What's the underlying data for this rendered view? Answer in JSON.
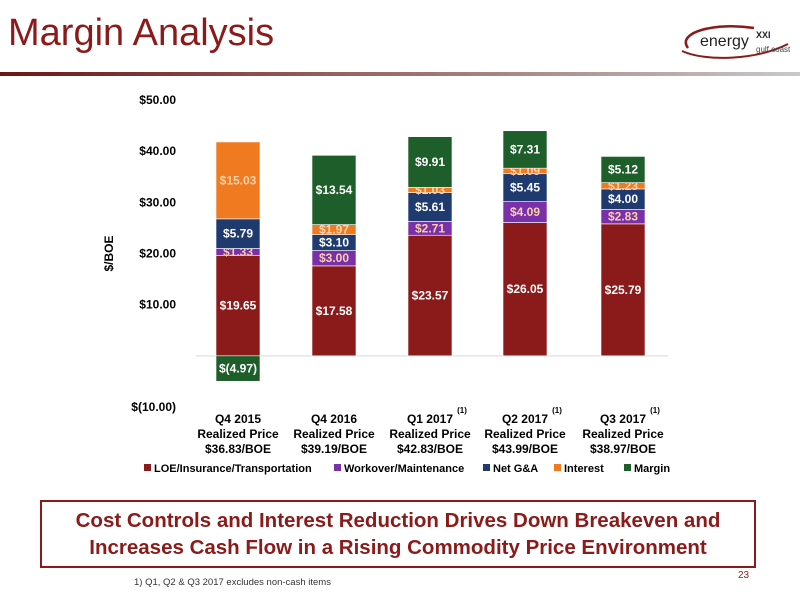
{
  "header": {
    "title": "Margin Analysis",
    "logo": {
      "brand": "energy",
      "brand_suffix": "XXI",
      "tagline": "gulf coast"
    }
  },
  "callout": {
    "line1": "Cost Controls and Interest Reduction Drives Down Breakeven and",
    "line2": "Increases Cash Flow in a Rising Commodity Price Environment"
  },
  "footnote": "1) Q1, Q2 & Q3 2017 excludes non-cash items",
  "page_number": "23",
  "chart_data": {
    "type": "bar",
    "stacked": true,
    "ylabel": "$/BOE",
    "ylim": [
      -10,
      50
    ],
    "yticks": [
      {
        "value": 50,
        "label": "$50.00"
      },
      {
        "value": 40,
        "label": "$40.00"
      },
      {
        "value": 30,
        "label": "$30.00"
      },
      {
        "value": 20,
        "label": "$20.00"
      },
      {
        "value": 10,
        "label": "$10.00"
      },
      {
        "value": -10,
        "label": "$(10.00)"
      }
    ],
    "grid": false,
    "legend_position": "bottom",
    "categories": [
      {
        "line1": "Q4 2015",
        "line2": "Realized Price",
        "line3": "$36.83/BOE",
        "note": ""
      },
      {
        "line1": "Q4 2016",
        "line2": "Realized Price",
        "line3": "$39.19/BOE",
        "note": ""
      },
      {
        "line1": "Q1 2017",
        "line2": "Realized Price",
        "line3": "$42.83/BOE",
        "note": "(1)"
      },
      {
        "line1": "Q2 2017",
        "line2": "Realized Price",
        "line3": "$43.99/BOE",
        "note": "(1)"
      },
      {
        "line1": "Q3 2017",
        "line2": "Realized Price",
        "line3": "$38.97/BOE",
        "note": "(1)"
      }
    ],
    "series": [
      {
        "name": "LOE/Insurance/Transportation",
        "color": "#8b1a1a",
        "values": [
          19.65,
          17.58,
          23.57,
          26.05,
          25.79
        ],
        "labels": [
          "$19.65",
          "$17.58",
          "$23.57",
          "$26.05",
          "$25.79"
        ]
      },
      {
        "name": "Workover/Maintenance",
        "color": "#7a30a8",
        "values": [
          1.33,
          3.0,
          2.71,
          4.09,
          2.83
        ],
        "labels": [
          "$1.33",
          "$3.00",
          "$2.71",
          "$4.09",
          "$2.83"
        ]
      },
      {
        "name": "Net G&A",
        "color": "#1f3a6e",
        "values": [
          5.79,
          3.1,
          5.61,
          5.45,
          4.0
        ],
        "labels": [
          "$5.79",
          "$3.10",
          "$5.61",
          "$5.45",
          "$4.00"
        ]
      },
      {
        "name": "Interest",
        "color": "#f07a20",
        "values": [
          15.03,
          1.97,
          1.03,
          1.09,
          1.23
        ],
        "labels": [
          "$15.03",
          "$1.97",
          "$1.03",
          "$1.09",
          "$1.23"
        ]
      },
      {
        "name": "Margin",
        "color": "#1e5e2a",
        "values": [
          -4.97,
          13.54,
          9.91,
          7.31,
          5.12
        ],
        "labels": [
          "$(4.97)",
          "$13.54",
          "$9.91",
          "$7.31",
          "$5.12"
        ]
      }
    ]
  }
}
